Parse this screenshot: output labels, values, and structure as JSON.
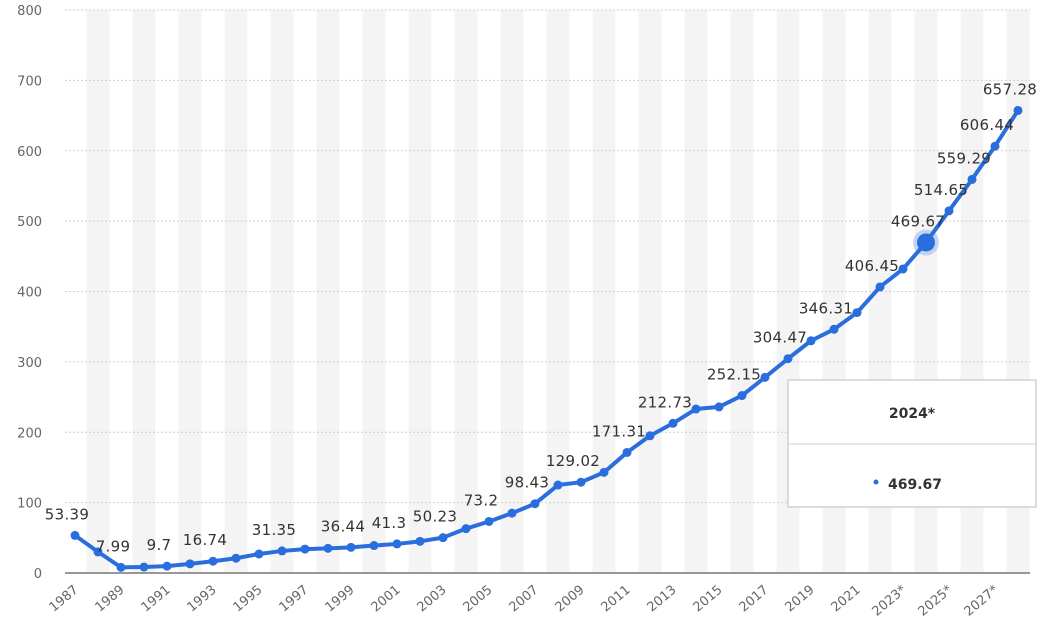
{
  "chart_data": {
    "type": "line",
    "categories": [
      "1987",
      null,
      "1989",
      null,
      "1991",
      null,
      "1993",
      null,
      "1995",
      null,
      "1997",
      null,
      "1999",
      null,
      "2001",
      null,
      "2003",
      null,
      "2005",
      null,
      "2007",
      null,
      "2009",
      null,
      "2011",
      null,
      "2013",
      null,
      "2015",
      null,
      "2017",
      null,
      "2019",
      null,
      "2021",
      null,
      "2023*",
      null,
      "2025*",
      null,
      "2027*",
      null
    ],
    "series": [
      {
        "color": "#2a6ede",
        "values": [
          53.39,
          30,
          7.99,
          8.5,
          9.7,
          13,
          16.74,
          21,
          27,
          31.35,
          34,
          35,
          36.44,
          39,
          41.3,
          45,
          50.23,
          63,
          73.2,
          85,
          98.43,
          125,
          129.02,
          143,
          171.31,
          195,
          212.73,
          233,
          236,
          252.15,
          278,
          304.47,
          330,
          346.31,
          370,
          406.45,
          432,
          469.67,
          514.65,
          559.29,
          606.44,
          657.28
        ],
        "value_labels": [
          "53.39",
          null,
          "7.99",
          null,
          "9.7",
          null,
          "16.74",
          null,
          null,
          "31.35",
          null,
          null,
          "36.44",
          null,
          "41.3",
          null,
          "50.23",
          null,
          "73.2",
          null,
          "98.43",
          null,
          "129.02",
          null,
          "171.31",
          null,
          "212.73",
          null,
          null,
          "252.15",
          null,
          "304.47",
          null,
          "346.31",
          null,
          "406.45",
          null,
          "469.67",
          "514.65",
          "559.29",
          "606.44",
          "657.28"
        ]
      }
    ],
    "ylim": [
      0,
      800
    ],
    "yticks": [
      0,
      100,
      200,
      300,
      400,
      500,
      600,
      700,
      800
    ],
    "grid": true,
    "tooltip": {
      "title": "2024*",
      "value": 469.67
    }
  }
}
